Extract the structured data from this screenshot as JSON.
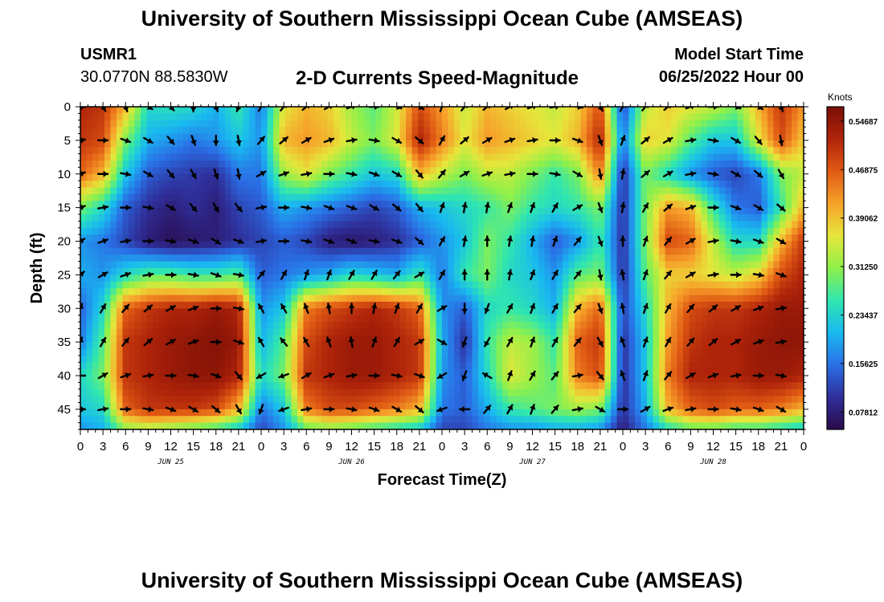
{
  "header": {
    "title": "University of Southern Mississippi Ocean Cube (AMSEAS)",
    "station_id": "USMR1",
    "coordinates": "30.0770N  88.5830W",
    "subtitle": "2-D Currents Speed-Magnitude",
    "model_start_label": "Model Start Time",
    "model_start_value": "06/25/2022 Hour 00"
  },
  "footer": {
    "title": "University of Southern Mississippi Ocean Cube (AMSEAS)"
  },
  "colors": {
    "colormap": [
      "#2a0a4a",
      "#2f2f9a",
      "#2a6fe6",
      "#19b9f0",
      "#2fe6b0",
      "#8ef04a",
      "#e6e63a",
      "#f7a22a",
      "#e05a14",
      "#b0240a",
      "#7a0e06"
    ],
    "arrow": "#000000",
    "axis": "#000000"
  },
  "chart_data": {
    "type": "heatmap",
    "title": "2-D Currents Speed-Magnitude",
    "xlabel": "Forecast Time(Z)",
    "ylabel": "Depth (ft)",
    "x_range_hours": [
      0,
      96
    ],
    "ylim": [
      0,
      48
    ],
    "x_tick_labels": [
      "0",
      "3",
      "6",
      "9",
      "12",
      "15",
      "18",
      "21",
      "0",
      "3",
      "6",
      "9",
      "12",
      "15",
      "18",
      "21",
      "0",
      "3",
      "6",
      "9",
      "12",
      "15",
      "18",
      "21",
      "0",
      "3",
      "6",
      "9",
      "12",
      "15",
      "18",
      "21",
      "0"
    ],
    "x_ticks_hours": [
      0,
      3,
      6,
      9,
      12,
      15,
      18,
      21,
      24,
      27,
      30,
      33,
      36,
      39,
      42,
      45,
      48,
      51,
      54,
      57,
      60,
      63,
      66,
      69,
      72,
      75,
      78,
      81,
      84,
      87,
      90,
      93,
      96
    ],
    "day_labels": [
      {
        "label": "JUN 25",
        "hour": 12
      },
      {
        "label": "JUN 26",
        "hour": 36
      },
      {
        "label": "JUN 27",
        "hour": 60
      },
      {
        "label": "JUN 28",
        "hour": 84
      }
    ],
    "y_ticks": [
      0,
      5,
      10,
      15,
      20,
      25,
      30,
      35,
      40,
      45
    ],
    "y_tick_labels": [
      "0",
      "5",
      "10",
      "15",
      "20",
      "25",
      "30",
      "35",
      "40",
      "45"
    ],
    "colorbar": {
      "unit": "Knots",
      "range": [
        0.05,
        0.57
      ],
      "tick_values": [
        0.54687,
        0.46875,
        0.39062,
        0.3125,
        0.23437,
        0.15625,
        0.07812
      ],
      "tick_labels": [
        "0.54687",
        "0.46875",
        "0.39062",
        "0.31250",
        "0.23437",
        "0.15625",
        "0.07812"
      ]
    },
    "speed_grid": {
      "hours": [
        0,
        3,
        6,
        9,
        12,
        15,
        18,
        21,
        24,
        27,
        30,
        33,
        36,
        39,
        42,
        45,
        48,
        51,
        54,
        57,
        60,
        63,
        66,
        69,
        72,
        75,
        78,
        81,
        84,
        87,
        90,
        93,
        96
      ],
      "depths": [
        0,
        5,
        10,
        15,
        20,
        25,
        30,
        35,
        40,
        45,
        48
      ],
      "values": [
        [
          0.52,
          0.5,
          0.4,
          0.24,
          0.25,
          0.24,
          0.2,
          0.26,
          0.16,
          0.36,
          0.4,
          0.38,
          0.32,
          0.28,
          0.35,
          0.48,
          0.42,
          0.34,
          0.4,
          0.38,
          0.36,
          0.34,
          0.38,
          0.48,
          0.12,
          0.34,
          0.38,
          0.36,
          0.34,
          0.3,
          0.4,
          0.5,
          0.42
        ],
        [
          0.5,
          0.48,
          0.3,
          0.2,
          0.18,
          0.16,
          0.18,
          0.22,
          0.18,
          0.4,
          0.42,
          0.4,
          0.34,
          0.3,
          0.36,
          0.52,
          0.44,
          0.36,
          0.42,
          0.4,
          0.38,
          0.36,
          0.4,
          0.52,
          0.16,
          0.38,
          0.36,
          0.28,
          0.22,
          0.22,
          0.36,
          0.48,
          0.38
        ],
        [
          0.46,
          0.4,
          0.22,
          0.14,
          0.12,
          0.11,
          0.1,
          0.16,
          0.16,
          0.32,
          0.36,
          0.3,
          0.26,
          0.22,
          0.24,
          0.4,
          0.34,
          0.3,
          0.34,
          0.34,
          0.3,
          0.26,
          0.3,
          0.44,
          0.1,
          0.3,
          0.24,
          0.18,
          0.14,
          0.12,
          0.16,
          0.3,
          0.34
        ],
        [
          0.3,
          0.24,
          0.14,
          0.1,
          0.08,
          0.1,
          0.08,
          0.12,
          0.14,
          0.2,
          0.18,
          0.16,
          0.14,
          0.12,
          0.14,
          0.2,
          0.22,
          0.24,
          0.26,
          0.3,
          0.26,
          0.24,
          0.26,
          0.3,
          0.1,
          0.3,
          0.42,
          0.4,
          0.26,
          0.16,
          0.14,
          0.26,
          0.4
        ],
        [
          0.18,
          0.16,
          0.12,
          0.08,
          0.06,
          0.07,
          0.08,
          0.1,
          0.12,
          0.14,
          0.12,
          0.08,
          0.07,
          0.08,
          0.1,
          0.14,
          0.18,
          0.22,
          0.3,
          0.26,
          0.2,
          0.14,
          0.18,
          0.26,
          0.1,
          0.3,
          0.48,
          0.46,
          0.34,
          0.24,
          0.24,
          0.4,
          0.5
        ],
        [
          0.2,
          0.18,
          0.24,
          0.28,
          0.28,
          0.26,
          0.26,
          0.28,
          0.14,
          0.16,
          0.18,
          0.2,
          0.24,
          0.22,
          0.2,
          0.26,
          0.16,
          0.26,
          0.3,
          0.24,
          0.22,
          0.18,
          0.28,
          0.3,
          0.1,
          0.28,
          0.38,
          0.38,
          0.36,
          0.34,
          0.38,
          0.48,
          0.52
        ],
        [
          0.14,
          0.24,
          0.46,
          0.5,
          0.52,
          0.52,
          0.54,
          0.52,
          0.18,
          0.22,
          0.44,
          0.48,
          0.5,
          0.52,
          0.5,
          0.46,
          0.18,
          0.14,
          0.24,
          0.26,
          0.24,
          0.2,
          0.4,
          0.46,
          0.12,
          0.24,
          0.4,
          0.48,
          0.5,
          0.5,
          0.52,
          0.54,
          0.54
        ],
        [
          0.16,
          0.28,
          0.5,
          0.52,
          0.54,
          0.55,
          0.56,
          0.54,
          0.2,
          0.28,
          0.48,
          0.52,
          0.54,
          0.54,
          0.52,
          0.5,
          0.2,
          0.1,
          0.26,
          0.34,
          0.32,
          0.26,
          0.46,
          0.5,
          0.1,
          0.22,
          0.42,
          0.5,
          0.52,
          0.52,
          0.54,
          0.55,
          0.55
        ],
        [
          0.24,
          0.3,
          0.5,
          0.52,
          0.54,
          0.55,
          0.55,
          0.52,
          0.24,
          0.3,
          0.5,
          0.52,
          0.54,
          0.54,
          0.52,
          0.5,
          0.18,
          0.14,
          0.24,
          0.36,
          0.32,
          0.28,
          0.44,
          0.48,
          0.1,
          0.22,
          0.44,
          0.52,
          0.52,
          0.52,
          0.54,
          0.54,
          0.52
        ],
        [
          0.22,
          0.24,
          0.46,
          0.5,
          0.5,
          0.5,
          0.48,
          0.4,
          0.16,
          0.22,
          0.44,
          0.48,
          0.48,
          0.46,
          0.44,
          0.4,
          0.16,
          0.14,
          0.2,
          0.26,
          0.28,
          0.3,
          0.32,
          0.3,
          0.1,
          0.2,
          0.4,
          0.46,
          0.48,
          0.46,
          0.46,
          0.44,
          0.4
        ],
        [
          0.18,
          0.2,
          0.3,
          0.32,
          0.3,
          0.28,
          0.26,
          0.22,
          0.12,
          0.18,
          0.28,
          0.3,
          0.28,
          0.26,
          0.24,
          0.22,
          0.12,
          0.12,
          0.16,
          0.18,
          0.18,
          0.2,
          0.2,
          0.18,
          0.08,
          0.16,
          0.24,
          0.28,
          0.28,
          0.26,
          0.26,
          0.24,
          0.22
        ]
      ]
    },
    "arrow_field": {
      "hours": [
        0,
        3,
        6,
        9,
        12,
        15,
        18,
        21,
        24,
        27,
        30,
        33,
        36,
        39,
        42,
        45,
        48,
        51,
        54,
        57,
        60,
        63,
        66,
        69,
        72,
        75,
        78,
        81,
        84,
        87,
        90,
        93
      ],
      "depths": [
        0,
        5,
        10,
        15,
        20,
        25,
        30,
        35,
        40,
        45
      ],
      "note": "arrow direction in compass degrees (0 = up/north, 90 = right/east)",
      "directions_deg": [
        [
          90,
          150,
          160,
          120,
          140,
          180,
          160,
          200,
          30,
          40,
          50,
          60,
          70,
          90,
          110,
          120,
          20,
          40,
          50,
          60,
          70,
          80,
          100,
          150,
          30,
          40,
          50,
          70,
          90,
          110,
          120,
          160
        ],
        [
          80,
          90,
          110,
          120,
          140,
          160,
          180,
          170,
          40,
          50,
          60,
          70,
          80,
          100,
          120,
          130,
          30,
          50,
          60,
          70,
          80,
          90,
          110,
          160,
          20,
          50,
          60,
          80,
          100,
          120,
          140,
          170
        ],
        [
          70,
          90,
          100,
          120,
          140,
          150,
          160,
          170,
          60,
          70,
          80,
          90,
          100,
          110,
          120,
          140,
          40,
          60,
          70,
          80,
          90,
          100,
          120,
          170,
          10,
          50,
          60,
          80,
          100,
          120,
          130,
          150
        ],
        [
          70,
          80,
          90,
          100,
          120,
          140,
          150,
          140,
          80,
          90,
          100,
          110,
          110,
          120,
          130,
          140,
          20,
          10,
          10,
          20,
          20,
          30,
          60,
          160,
          10,
          30,
          50,
          70,
          90,
          110,
          120,
          130
        ],
        [
          60,
          70,
          80,
          90,
          100,
          110,
          120,
          110,
          80,
          90,
          100,
          110,
          110,
          100,
          110,
          130,
          30,
          10,
          0,
          10,
          10,
          20,
          40,
          160,
          0,
          20,
          40,
          60,
          80,
          100,
          110,
          120
        ],
        [
          50,
          60,
          70,
          80,
          90,
          100,
          110,
          100,
          40,
          30,
          20,
          20,
          30,
          30,
          40,
          60,
          30,
          0,
          0,
          10,
          20,
          30,
          40,
          170,
          350,
          20,
          40,
          60,
          80,
          90,
          100,
          110
        ],
        [
          20,
          30,
          40,
          50,
          60,
          70,
          90,
          100,
          330,
          330,
          340,
          350,
          0,
          10,
          20,
          30,
          60,
          180,
          200,
          30,
          20,
          30,
          40,
          160,
          350,
          20,
          30,
          40,
          50,
          60,
          70,
          80
        ],
        [
          20,
          30,
          40,
          50,
          60,
          70,
          90,
          110,
          330,
          320,
          330,
          340,
          350,
          20,
          30,
          60,
          120,
          200,
          210,
          30,
          20,
          30,
          40,
          150,
          340,
          20,
          30,
          40,
          50,
          60,
          70,
          80
        ],
        [
          270,
          60,
          70,
          80,
          90,
          100,
          110,
          140,
          240,
          250,
          60,
          70,
          80,
          90,
          100,
          110,
          240,
          200,
          300,
          20,
          30,
          40,
          80,
          140,
          340,
          20,
          40,
          60,
          70,
          80,
          90,
          100
        ],
        [
          90,
          80,
          90,
          100,
          110,
          120,
          130,
          150,
          200,
          250,
          80,
          90,
          100,
          110,
          120,
          130,
          250,
          270,
          40,
          30,
          20,
          40,
          80,
          120,
          90,
          60,
          70,
          80,
          90,
          100,
          110,
          120
        ]
      ]
    }
  }
}
